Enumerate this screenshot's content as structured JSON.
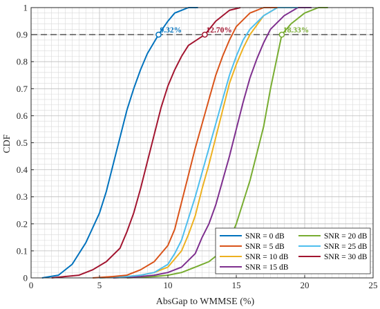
{
  "chart_data": {
    "type": "line",
    "xlabel": "AbsGap to WMMSE (%)",
    "ylabel": "CDF",
    "xlim": [
      0,
      25
    ],
    "ylim": [
      0,
      1
    ],
    "xticks": [
      "0",
      "5",
      "10",
      "15",
      "20",
      "25"
    ],
    "yticks": [
      "0",
      "0.1",
      "0.2",
      "0.3",
      "0.4",
      "0.5",
      "0.6",
      "0.7",
      "0.8",
      "0.9",
      "1"
    ],
    "grid": true,
    "minor_grid": true,
    "legend_position": "bottom-right",
    "reference_line": {
      "y": 0.9,
      "style": "dashed"
    },
    "series": [
      {
        "name": "SNR = 0 dB",
        "color": "#0072BD",
        "points": [
          [
            0.8,
            0
          ],
          [
            2,
            0.01
          ],
          [
            3,
            0.05
          ],
          [
            4,
            0.13
          ],
          [
            5,
            0.24
          ],
          [
            5.5,
            0.32
          ],
          [
            6,
            0.42
          ],
          [
            6.5,
            0.52
          ],
          [
            7,
            0.62
          ],
          [
            7.5,
            0.7
          ],
          [
            8,
            0.77
          ],
          [
            8.5,
            0.83
          ],
          [
            9.32,
            0.9
          ],
          [
            10,
            0.95
          ],
          [
            10.5,
            0.98
          ],
          [
            11.5,
            1.0
          ],
          [
            12.2,
            1.0
          ]
        ]
      },
      {
        "name": "SNR = 5 dB",
        "color": "#D95319",
        "points": [
          [
            4.5,
            0
          ],
          [
            6,
            0.005
          ],
          [
            7,
            0.01
          ],
          [
            8,
            0.03
          ],
          [
            9,
            0.06
          ],
          [
            10,
            0.12
          ],
          [
            10.5,
            0.18
          ],
          [
            11,
            0.28
          ],
          [
            11.5,
            0.38
          ],
          [
            12,
            0.48
          ],
          [
            12.5,
            0.57
          ],
          [
            13,
            0.66
          ],
          [
            13.5,
            0.75
          ],
          [
            14,
            0.82
          ],
          [
            14.5,
            0.88
          ],
          [
            15,
            0.93
          ],
          [
            16,
            0.98
          ],
          [
            17,
            1.0
          ],
          [
            18,
            1.0
          ]
        ]
      },
      {
        "name": "SNR = 10 dB",
        "color": "#EDB120",
        "points": [
          [
            5,
            0
          ],
          [
            7,
            0.005
          ],
          [
            8,
            0.01
          ],
          [
            9,
            0.02
          ],
          [
            10,
            0.04
          ],
          [
            11,
            0.1
          ],
          [
            11.5,
            0.16
          ],
          [
            12,
            0.23
          ],
          [
            12.5,
            0.33
          ],
          [
            13,
            0.42
          ],
          [
            13.5,
            0.52
          ],
          [
            14,
            0.62
          ],
          [
            14.5,
            0.72
          ],
          [
            15,
            0.79
          ],
          [
            15.5,
            0.85
          ],
          [
            16,
            0.9
          ],
          [
            17,
            0.97
          ],
          [
            18,
            1.0
          ],
          [
            19,
            1.0
          ]
        ]
      },
      {
        "name": "SNR = 15 dB",
        "color": "#7E2F8E",
        "points": [
          [
            6,
            0
          ],
          [
            8,
            0.005
          ],
          [
            9,
            0.01
          ],
          [
            10,
            0.02
          ],
          [
            11,
            0.04
          ],
          [
            12,
            0.09
          ],
          [
            12.5,
            0.15
          ],
          [
            13,
            0.2
          ],
          [
            13.5,
            0.27
          ],
          [
            14,
            0.36
          ],
          [
            14.5,
            0.45
          ],
          [
            15,
            0.55
          ],
          [
            15.5,
            0.65
          ],
          [
            16,
            0.74
          ],
          [
            16.5,
            0.81
          ],
          [
            17,
            0.87
          ],
          [
            17.5,
            0.92
          ],
          [
            18.5,
            0.97
          ],
          [
            19.5,
            1.0
          ],
          [
            20.5,
            1.0
          ]
        ]
      },
      {
        "name": "SNR = 20 dB",
        "color": "#77AC30",
        "points": [
          [
            7,
            0
          ],
          [
            9,
            0.005
          ],
          [
            10,
            0.01
          ],
          [
            11,
            0.02
          ],
          [
            12,
            0.04
          ],
          [
            13,
            0.06
          ],
          [
            14,
            0.1
          ],
          [
            14.5,
            0.14
          ],
          [
            15,
            0.2
          ],
          [
            15.5,
            0.28
          ],
          [
            16,
            0.36
          ],
          [
            16.5,
            0.46
          ],
          [
            17,
            0.56
          ],
          [
            17.5,
            0.7
          ],
          [
            18.33,
            0.9
          ],
          [
            19,
            0.94
          ],
          [
            20,
            0.98
          ],
          [
            21,
            1.0
          ],
          [
            21.7,
            1.0
          ]
        ]
      },
      {
        "name": "SNR = 25 dB",
        "color": "#4DBEEE",
        "points": [
          [
            5,
            0
          ],
          [
            7,
            0.005
          ],
          [
            8,
            0.01
          ],
          [
            9,
            0.02
          ],
          [
            10,
            0.05
          ],
          [
            10.5,
            0.09
          ],
          [
            11,
            0.14
          ],
          [
            11.5,
            0.22
          ],
          [
            12,
            0.3
          ],
          [
            12.5,
            0.39
          ],
          [
            13,
            0.48
          ],
          [
            13.5,
            0.57
          ],
          [
            14,
            0.66
          ],
          [
            14.5,
            0.75
          ],
          [
            15,
            0.82
          ],
          [
            15.5,
            0.88
          ],
          [
            16,
            0.92
          ],
          [
            17,
            0.97
          ],
          [
            18,
            1.0
          ],
          [
            19.5,
            1.0
          ]
        ]
      },
      {
        "name": "SNR = 30 dB",
        "color": "#A2142F",
        "points": [
          [
            1.5,
            0
          ],
          [
            2.5,
            0.005
          ],
          [
            3.5,
            0.01
          ],
          [
            4.5,
            0.03
          ],
          [
            5.5,
            0.06
          ],
          [
            6.5,
            0.11
          ],
          [
            7,
            0.17
          ],
          [
            7.5,
            0.24
          ],
          [
            8,
            0.33
          ],
          [
            8.5,
            0.43
          ],
          [
            9,
            0.53
          ],
          [
            9.5,
            0.63
          ],
          [
            10,
            0.71
          ],
          [
            10.5,
            0.77
          ],
          [
            11,
            0.82
          ],
          [
            11.5,
            0.86
          ],
          [
            12.7,
            0.9
          ],
          [
            13.5,
            0.95
          ],
          [
            14.5,
            0.99
          ],
          [
            15.3,
            1.0
          ]
        ]
      }
    ],
    "annotations": [
      {
        "text": "9.32%",
        "x": 9.32,
        "y": 0.9,
        "color": "#0072BD"
      },
      {
        "text": "12.70%",
        "x": 12.7,
        "y": 0.9,
        "color": "#A2142F"
      },
      {
        "text": "18.33%",
        "x": 18.33,
        "y": 0.9,
        "color": "#77AC30"
      }
    ],
    "legend_order": [
      0,
      4,
      1,
      5,
      2,
      6,
      3
    ]
  }
}
